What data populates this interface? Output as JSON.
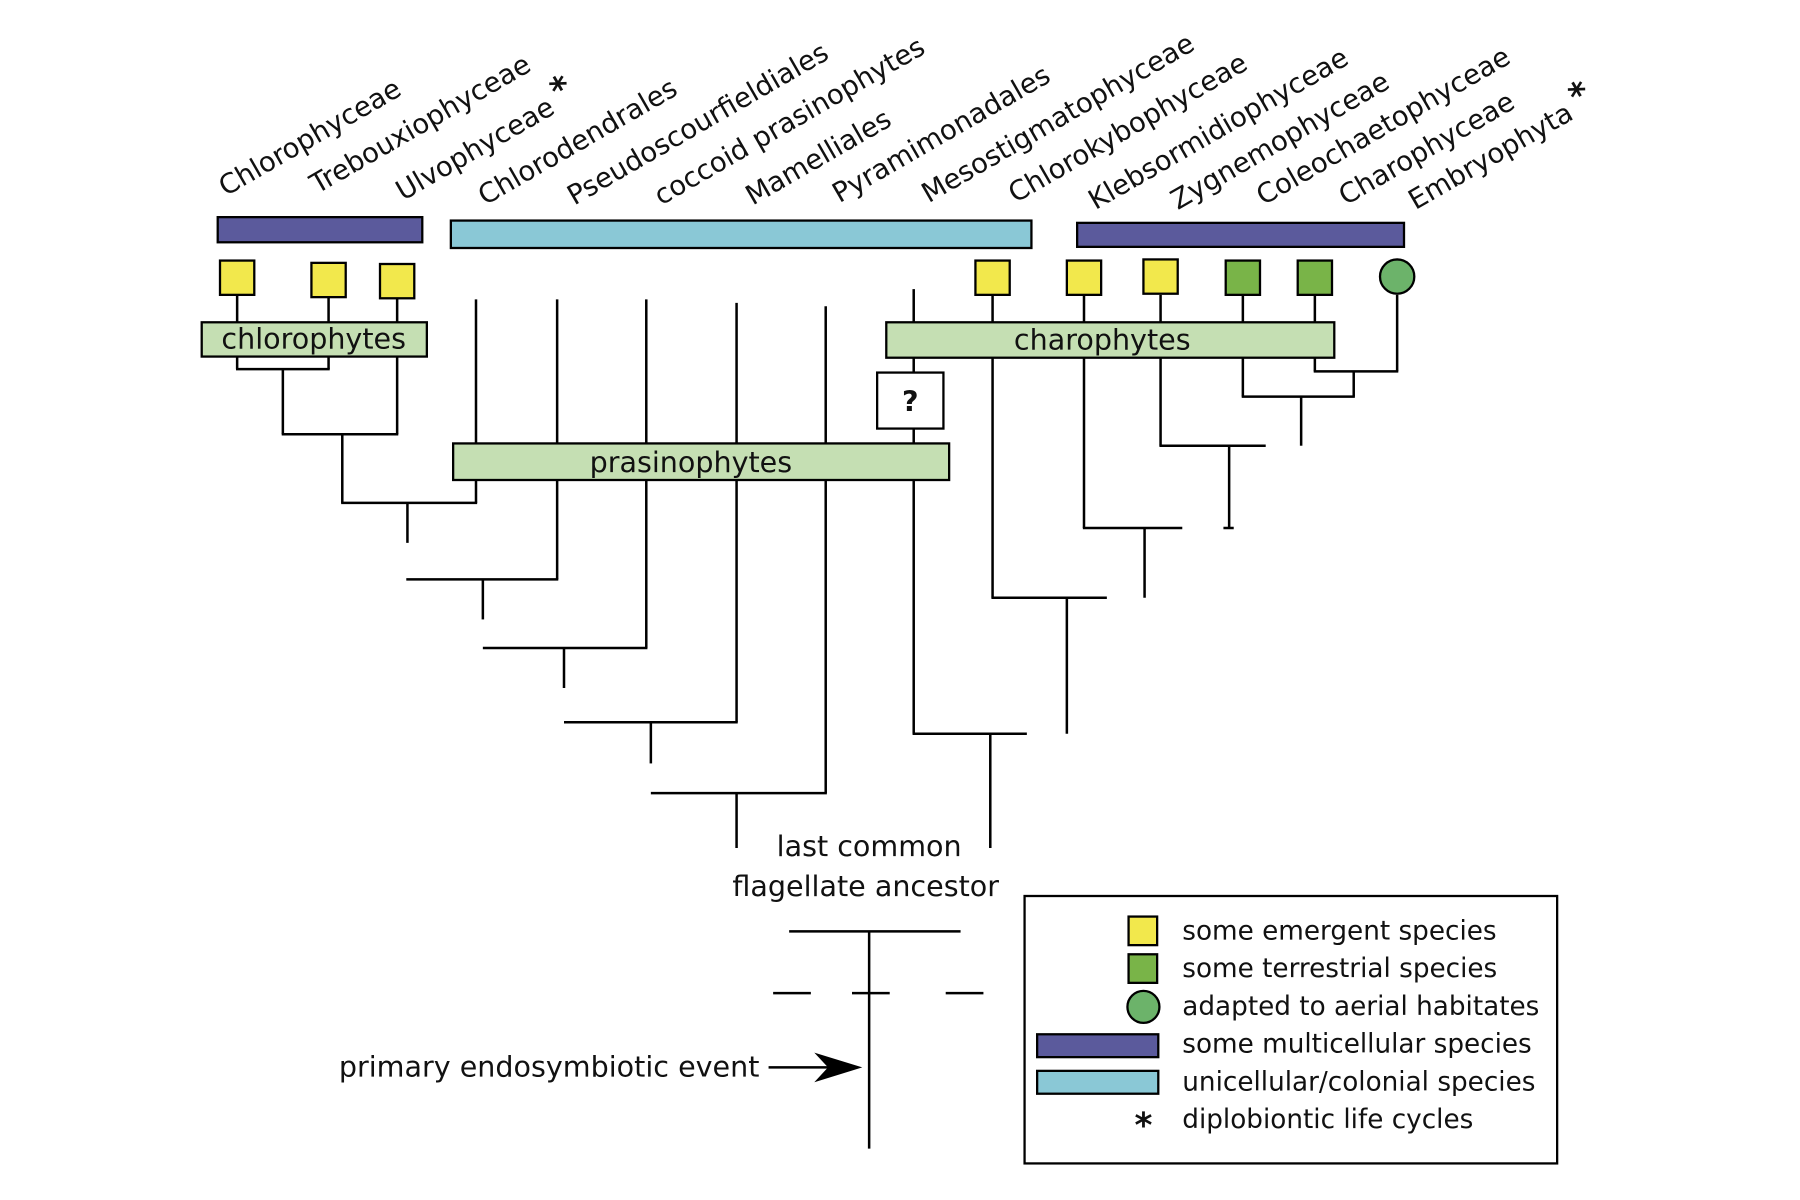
{
  "taxa": [
    {
      "label": "Chlorophyceae"
    },
    {
      "label": "Trebouxiophyceae"
    },
    {
      "label": "Ulvophyceae",
      "mark": "*"
    },
    {
      "label": "Chlorodendrales"
    },
    {
      "label": "Pseudoscourfieldiales"
    },
    {
      "label": "coccoid prasinophytes"
    },
    {
      "label": "Mamelliales"
    },
    {
      "label": "Pyramimonadales"
    },
    {
      "label": "Mesostigmatophyceae"
    },
    {
      "label": "Chlorokybophyceae"
    },
    {
      "label": "Klebsormidiophyceae"
    },
    {
      "label": "Zygnemophyceae"
    },
    {
      "label": "Coleochaetophyceae"
    },
    {
      "label": "Charophyceae"
    },
    {
      "label": "Embryophyta",
      "mark": "*"
    }
  ],
  "groups": {
    "chlorophytes": "chlorophytes",
    "charophytes": "charophytes",
    "prasinophytes": "prasinophytes",
    "unknown": "?"
  },
  "ancestor": {
    "line1": "last common",
    "line2": "flagellate ancestor"
  },
  "event": "primary endosymbiotic event",
  "legend": [
    {
      "label": "some emergent species"
    },
    {
      "label": "some terrestrial species"
    },
    {
      "label": "adapted to aerial habitates"
    },
    {
      "label": "some multicellular species"
    },
    {
      "label": "unicellular/colonial species"
    },
    {
      "symbol": "*",
      "label": "diplobiontic life cycles"
    }
  ]
}
